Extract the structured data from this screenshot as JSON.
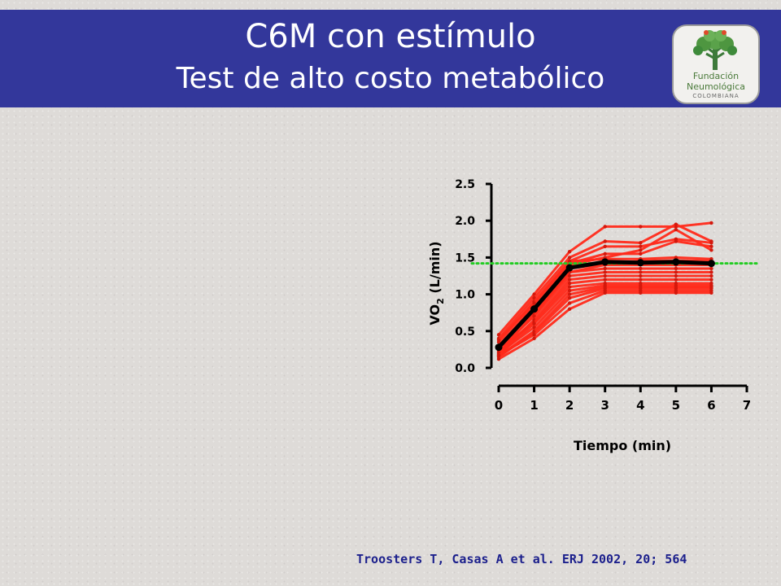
{
  "slide": {
    "title_line1": "C6M con estímulo",
    "title_line2": "Test de alto costo metabólico",
    "citation": "Troosters T, Casas A et al. ERJ 2002, 20; 564",
    "banner_color": "#33379b"
  },
  "logo": {
    "line1": "Fundación",
    "line2": "Neumológica",
    "line3": "COLOMBIANA",
    "icon": "tree-icon"
  },
  "chart_data": {
    "type": "line",
    "xlabel": "Tiempo (min)",
    "ylabel_main": "VO",
    "ylabel_sub": "2",
    "ylabel_unit": "(L/min)",
    "x_ticks": [
      "0",
      "1",
      "2",
      "3",
      "4",
      "5",
      "6",
      "7"
    ],
    "y_ticks": [
      "0.0",
      "0.5",
      "1.0",
      "1.5",
      "2.0",
      "2.5"
    ],
    "xlim": [
      0,
      7
    ],
    "ylim": [
      0,
      2.5
    ],
    "x": [
      0,
      1,
      2,
      3,
      4,
      5,
      6
    ],
    "reference_line": {
      "y": 1.42,
      "color": "#22cc22",
      "style": "dotted"
    },
    "subject_color": "#ff2a1a",
    "mean_color": "#000000",
    "series": [
      {
        "values": [
          0.45,
          1.0,
          1.58,
          1.92,
          1.92,
          1.92,
          1.97
        ]
      },
      {
        "values": [
          0.4,
          0.95,
          1.5,
          1.72,
          1.7,
          1.95,
          1.72
        ]
      },
      {
        "values": [
          0.35,
          0.9,
          1.45,
          1.65,
          1.65,
          1.75,
          1.7
        ]
      },
      {
        "values": [
          0.3,
          0.85,
          1.42,
          1.55,
          1.55,
          1.72,
          1.65
        ]
      },
      {
        "values": [
          0.25,
          0.8,
          1.4,
          1.5,
          1.6,
          1.88,
          1.6
        ]
      },
      {
        "values": [
          0.38,
          0.88,
          1.45,
          1.48,
          1.48,
          1.5,
          1.48
        ]
      },
      {
        "values": [
          0.28,
          0.78,
          1.35,
          1.42,
          1.45,
          1.46,
          1.45
        ]
      },
      {
        "values": [
          0.3,
          0.75,
          1.3,
          1.4,
          1.4,
          1.4,
          1.4
        ]
      },
      {
        "values": [
          0.22,
          0.72,
          1.3,
          1.35,
          1.35,
          1.35,
          1.35
        ]
      },
      {
        "values": [
          0.26,
          0.7,
          1.25,
          1.3,
          1.3,
          1.3,
          1.3
        ]
      },
      {
        "values": [
          0.2,
          0.65,
          1.2,
          1.25,
          1.25,
          1.25,
          1.25
        ]
      },
      {
        "values": [
          0.24,
          0.62,
          1.15,
          1.2,
          1.2,
          1.2,
          1.2
        ]
      },
      {
        "values": [
          0.18,
          0.6,
          1.1,
          1.15,
          1.15,
          1.15,
          1.15
        ]
      },
      {
        "values": [
          0.2,
          0.55,
          1.05,
          1.12,
          1.12,
          1.12,
          1.12
        ]
      },
      {
        "values": [
          0.16,
          0.5,
          1.0,
          1.1,
          1.1,
          1.1,
          1.1
        ]
      },
      {
        "values": [
          0.15,
          0.48,
          0.95,
          1.08,
          1.08,
          1.08,
          1.08
        ]
      },
      {
        "values": [
          0.17,
          0.45,
          0.88,
          1.05,
          1.05,
          1.05,
          1.05
        ]
      },
      {
        "values": [
          0.12,
          0.4,
          0.8,
          1.02,
          1.02,
          1.02,
          1.02
        ]
      }
    ],
    "mean": {
      "values": [
        0.28,
        0.8,
        1.36,
        1.44,
        1.43,
        1.44,
        1.42
      ]
    }
  }
}
